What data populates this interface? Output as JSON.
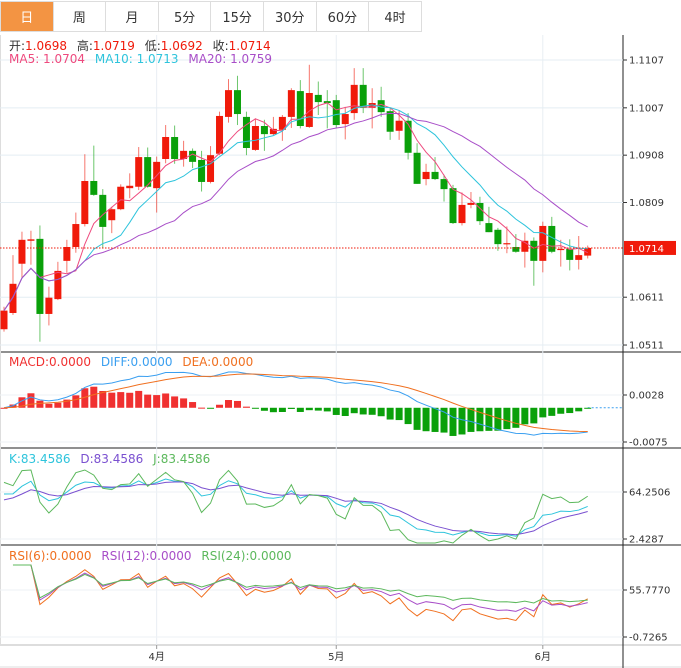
{
  "tabs": [
    {
      "label": "日",
      "active": true
    },
    {
      "label": "周"
    },
    {
      "label": "月"
    },
    {
      "label": "5分"
    },
    {
      "label": "15分"
    },
    {
      "label": "30分"
    },
    {
      "label": "60分"
    },
    {
      "label": "4时"
    }
  ],
  "ohlc_legend": {
    "open_label": "开:",
    "open": "1.0698",
    "high_label": "高:",
    "high": "1.0719",
    "low_label": "低:",
    "low": "1.0692",
    "close_label": "收:",
    "close": "1.0714"
  },
  "ma_legend": {
    "ma5": "MA5: 1.0704",
    "ma10": "MA10: 1.0713",
    "ma20": "MA20: 1.0759"
  },
  "macd_legend": {
    "macd": "MACD:0.0000",
    "diff": "DIFF:0.0000",
    "dea": "DEA:0.0000"
  },
  "kdj_legend": {
    "k": "K:83.4586",
    "d": "D:83.4586",
    "j": "J:83.4586"
  },
  "rsi_legend": {
    "rsi6": "RSI(6):0.0000",
    "rsi12": "RSI(12):0.0000",
    "rsi24": "RSI(24):0.0000"
  },
  "price_axis": [
    "1.1107",
    "1.1007",
    "1.0908",
    "1.0809",
    "1.0611",
    "1.0511"
  ],
  "current_price": "1.0714",
  "macd_axis": [
    "0.0028",
    "-0.0075"
  ],
  "kdj_axis": [
    "64.2506",
    "2.4287"
  ],
  "rsi_axis": [
    "55.7770",
    "-0.7265"
  ],
  "x_axis": [
    {
      "label": "4月",
      "index": 17
    },
    {
      "label": "5月",
      "index": 37
    },
    {
      "label": "6月",
      "index": 60
    }
  ],
  "colors": {
    "up": "#f01a0a",
    "down": "#0aa00a",
    "ma5": "#ee4a7e",
    "ma10": "#2ec4dc",
    "ma20": "#a84ec8",
    "macd": "#f03030",
    "diff": "#3a9ff0",
    "dea": "#f07020",
    "k": "#2ec4dc",
    "d": "#7a50d0",
    "j": "#5cb85c",
    "rsi6": "#f07020",
    "rsi12": "#a84ec8",
    "rsi24": "#5cb85c",
    "active_tab": "#f39443"
  },
  "chart_data": {
    "type": "candlestick",
    "ylim": [
      1.0511,
      1.1107
    ],
    "candles": [
      [
        1.0544,
        1.0591,
        1.0539,
        1.0583
      ],
      [
        1.0578,
        1.0699,
        1.0574,
        1.0639
      ],
      [
        1.0681,
        1.0748,
        1.0651,
        1.0731
      ],
      [
        1.0729,
        1.075,
        1.0679,
        1.0732
      ],
      [
        1.0733,
        1.0761,
        1.0518,
        1.0576
      ],
      [
        1.0576,
        1.0633,
        1.0552,
        1.061
      ],
      [
        1.0607,
        1.0685,
        1.0605,
        1.0666
      ],
      [
        1.0687,
        1.0731,
        1.0662,
        1.0716
      ],
      [
        1.0716,
        1.0788,
        1.0704,
        1.0764
      ],
      [
        1.0764,
        1.091,
        1.0759,
        1.0854
      ],
      [
        1.0854,
        1.0928,
        1.0823,
        1.0825
      ],
      [
        1.0825,
        1.0837,
        1.0713,
        1.0758
      ],
      [
        1.0772,
        1.08,
        1.0745,
        1.0795
      ],
      [
        1.0795,
        1.0847,
        1.0793,
        1.0842
      ],
      [
        1.0839,
        1.087,
        1.0818,
        1.0844
      ],
      [
        1.0842,
        1.0925,
        1.0835,
        1.0904
      ],
      [
        1.0904,
        1.0924,
        1.084,
        1.0842
      ],
      [
        1.0839,
        1.0905,
        1.0788,
        1.0894
      ],
      [
        1.09,
        1.0971,
        1.0891,
        1.0946
      ],
      [
        1.0946,
        1.097,
        1.089,
        1.09
      ],
      [
        1.09,
        1.0938,
        1.0884,
        1.0917
      ],
      [
        1.0917,
        1.0922,
        1.0881,
        1.0894
      ],
      [
        1.0898,
        1.0917,
        1.0832,
        1.0852
      ],
      [
        1.0852,
        1.0927,
        1.0849,
        1.0908
      ],
      [
        1.0911,
        1.0999,
        1.0908,
        1.099
      ],
      [
        1.0988,
        1.1067,
        1.0976,
        1.1044
      ],
      [
        1.1044,
        1.1074,
        1.0971,
        1.0994
      ],
      [
        1.0988,
        1.0999,
        1.0908,
        1.0923
      ],
      [
        1.0919,
        1.0985,
        1.0917,
        1.0969
      ],
      [
        1.0969,
        1.0982,
        1.0917,
        1.0952
      ],
      [
        1.0952,
        1.0988,
        1.095,
        1.0963
      ],
      [
        1.0961,
        1.0992,
        1.0938,
        1.0988
      ],
      [
        1.0988,
        1.1048,
        1.0965,
        1.1044
      ],
      [
        1.1042,
        1.1065,
        1.0964,
        1.0969
      ],
      [
        1.0967,
        1.1097,
        1.0965,
        1.1038
      ],
      [
        1.1034,
        1.1062,
        1.0992,
        1.1019
      ],
      [
        1.1021,
        1.1044,
        1.0964,
        1.1017
      ],
      [
        1.1023,
        1.1034,
        1.0964,
        1.0971
      ],
      [
        1.0973,
        1.1009,
        1.0941,
        1.0994
      ],
      [
        1.0996,
        1.109,
        1.0982,
        1.1055
      ],
      [
        1.1055,
        1.109,
        1.0996,
        1.1007
      ],
      [
        1.1007,
        1.1048,
        1.0964,
        1.1017
      ],
      [
        1.1023,
        1.1051,
        1.0988,
        1.0998
      ],
      [
        1.1,
        1.1006,
        1.094,
        1.0957
      ],
      [
        1.0959,
        1.1002,
        1.094,
        1.098
      ],
      [
        1.098,
        1.0996,
        1.0899,
        1.0913
      ],
      [
        1.0913,
        1.0933,
        1.0848,
        1.0848
      ],
      [
        1.0858,
        1.089,
        1.0845,
        1.0873
      ],
      [
        1.0873,
        1.0904,
        1.0856,
        1.0858
      ],
      [
        1.0858,
        1.0867,
        1.0811,
        1.0837
      ],
      [
        1.0839,
        1.0846,
        1.0764,
        1.0766
      ],
      [
        1.0766,
        1.083,
        1.0761,
        1.0804
      ],
      [
        1.0804,
        1.0831,
        1.0797,
        1.0808
      ],
      [
        1.0808,
        1.0821,
        1.0762,
        1.077
      ],
      [
        1.0766,
        1.08,
        1.0747,
        1.0747
      ],
      [
        1.0752,
        1.0756,
        1.0708,
        1.0722
      ],
      [
        1.0722,
        1.0759,
        1.0703,
        1.0724
      ],
      [
        1.0716,
        1.0743,
        1.0704,
        1.0706
      ],
      [
        1.0706,
        1.0746,
        1.0673,
        1.0729
      ],
      [
        1.0729,
        1.0736,
        1.0635,
        1.0687
      ],
      [
        1.0687,
        1.0769,
        1.0663,
        1.076
      ],
      [
        1.076,
        1.0779,
        1.0703,
        1.0706
      ],
      [
        1.071,
        1.0731,
        1.0675,
        1.0712
      ],
      [
        1.0712,
        1.0732,
        1.0667,
        1.0689
      ],
      [
        1.0689,
        1.0739,
        1.0669,
        1.0699
      ],
      [
        1.0698,
        1.0719,
        1.0692,
        1.0714
      ]
    ],
    "candle_format": [
      "open",
      "high",
      "low",
      "close"
    ],
    "indicators": [
      "MA5",
      "MA10",
      "MA20",
      "MACD",
      "KDJ",
      "RSI"
    ]
  }
}
